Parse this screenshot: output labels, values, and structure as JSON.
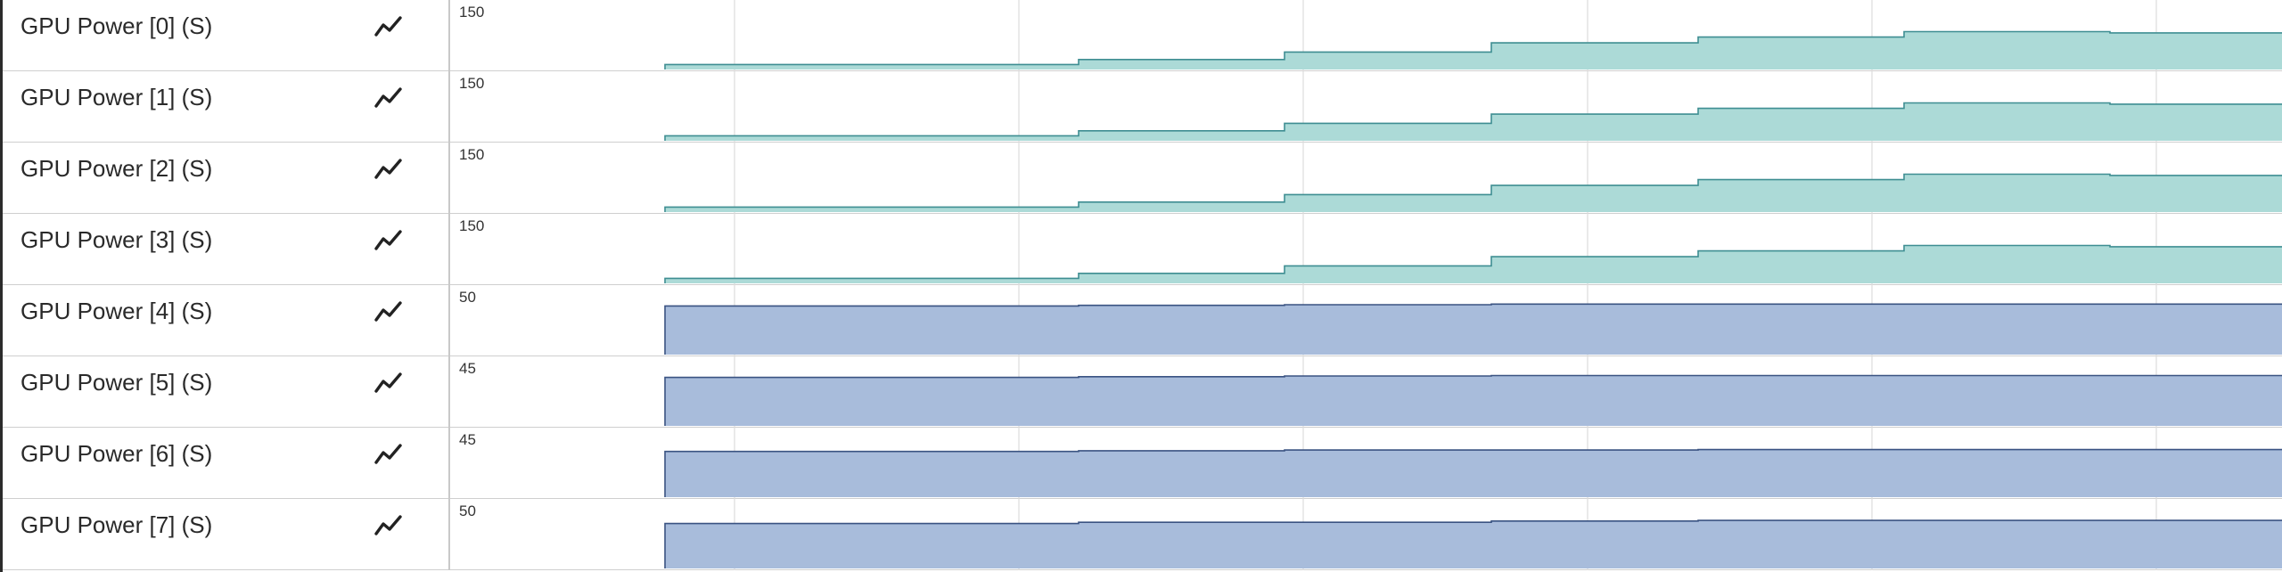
{
  "colors": {
    "teal_fill": "#acdad7",
    "teal_stroke": "#3f8e92",
    "blue_fill": "#a8bcdb",
    "blue_stroke": "#3a5382",
    "grid": "#dcdcdc"
  },
  "icon": "line-chart-icon",
  "tracks": [
    {
      "label": "GPU Power [0] (S)",
      "max_label": "150",
      "max": 150,
      "color": "teal",
      "values": [
        12,
        12,
        24,
        42,
        64,
        78,
        91,
        88
      ]
    },
    {
      "label": "GPU Power [1] (S)",
      "max_label": "150",
      "max": 150,
      "color": "teal",
      "values": [
        12,
        12,
        24,
        42,
        64,
        78,
        91,
        88
      ]
    },
    {
      "label": "GPU Power [2] (S)",
      "max_label": "150",
      "max": 150,
      "color": "teal",
      "values": [
        12,
        12,
        24,
        42,
        64,
        78,
        91,
        88
      ]
    },
    {
      "label": "GPU Power [3] (S)",
      "max_label": "150",
      "max": 150,
      "color": "teal",
      "values": [
        12,
        12,
        24,
        42,
        64,
        78,
        91,
        88
      ]
    },
    {
      "label": "GPU Power [4] (S)",
      "max_label": "50",
      "max": 50,
      "color": "blue",
      "values": [
        39,
        39,
        39.5,
        40,
        40.5,
        40.5,
        40.5,
        40.5
      ]
    },
    {
      "label": "GPU Power [5] (S)",
      "max_label": "45",
      "max": 45,
      "color": "blue",
      "values": [
        35,
        35,
        35.5,
        36,
        36.3,
        36.3,
        36.3,
        36.3
      ]
    },
    {
      "label": "GPU Power [6] (S)",
      "max_label": "45",
      "max": 45,
      "color": "blue",
      "values": [
        33,
        33,
        33.5,
        34,
        34,
        34.3,
        34.3,
        34.3
      ]
    },
    {
      "label": "GPU Power [7] (S)",
      "max_label": "50",
      "max": 50,
      "color": "blue",
      "values": [
        36,
        36,
        37,
        37,
        38,
        38.5,
        38.5,
        38.5
      ]
    }
  ]
}
